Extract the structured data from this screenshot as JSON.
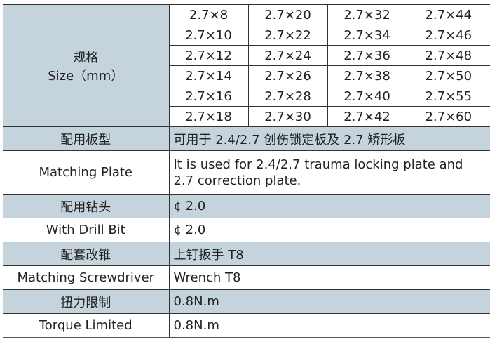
{
  "size": {
    "label_cn": "规格",
    "label_en": "Size（mm）",
    "rows": [
      [
        "2.7×8",
        "2.7×20",
        "2.7×32",
        "2.7×44"
      ],
      [
        "2.7×10",
        "2.7×22",
        "2.7×34",
        "2.7×46"
      ],
      [
        "2.7×12",
        "2.7×24",
        "2.7×36",
        "2.7×48"
      ],
      [
        "2.7×14",
        "2.7×26",
        "2.7×38",
        "2.7×50"
      ],
      [
        "2.7×16",
        "2.7×28",
        "2.7×40",
        "2.7×55"
      ],
      [
        "2.7×18",
        "2.7×30",
        "2.7×42",
        "2.7×60"
      ]
    ]
  },
  "specs": [
    {
      "label": "配用板型",
      "value": "可用于 2.4/2.7 创伤锁定板及 2.7 矫形板",
      "shaded": true
    },
    {
      "label": "Matching Plate",
      "value": "It is used for 2.4/2.7 trauma locking plate and 2.7 correction plate.",
      "shaded": false
    },
    {
      "label": "配用钻头",
      "value": "¢ 2.0",
      "shaded": true
    },
    {
      "label": "With Drill Bit",
      "value": "¢ 2.0",
      "shaded": false
    },
    {
      "label": "配套改锥",
      "value": "上钉扳手 T8",
      "shaded": true
    },
    {
      "label": "Matching Screwdriver",
      "value": "Wrench T8",
      "shaded": false
    },
    {
      "label": "扭力限制",
      "value": "0.8N.m",
      "shaded": true
    },
    {
      "label": "Torque Limited",
      "value": "0.8N.m",
      "shaded": false
    }
  ],
  "colors": {
    "shade": "#c5d4dc",
    "border": "#333333"
  }
}
